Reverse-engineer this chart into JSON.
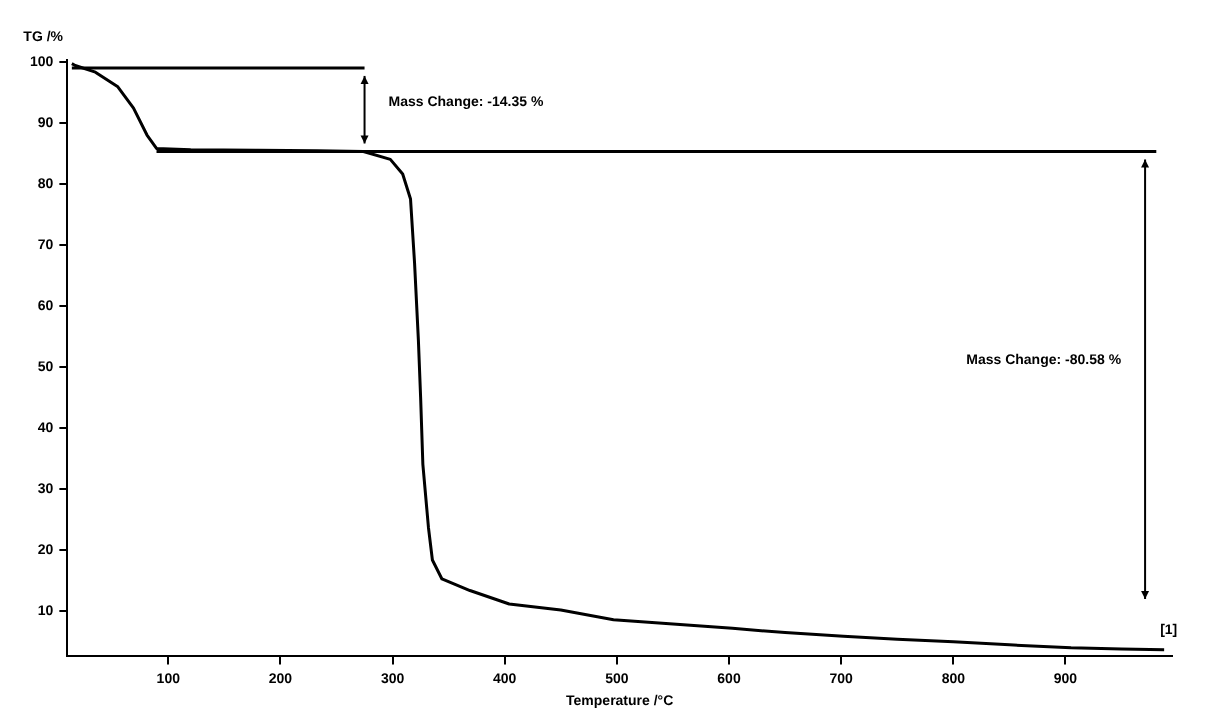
{
  "chart_data": {
    "type": "line",
    "xlabel": "Temperature /°C",
    "ylabel": "TG /%",
    "xlim": [
      10,
      995
    ],
    "ylim": [
      2.5,
      100.3
    ],
    "xticks": [
      100,
      200,
      300,
      400,
      500,
      600,
      700,
      800,
      900
    ],
    "yticks": [
      10,
      20,
      30,
      40,
      50,
      60,
      70,
      80,
      90,
      100
    ],
    "grid": false,
    "legend": false,
    "marker": "none",
    "line_style": "solid",
    "series": [
      {
        "color": "#000000",
        "x": [
          14,
          17,
          35,
          55,
          69,
          81,
          89.5,
          120,
          180,
          233,
          274,
          298,
          309,
          316,
          319.6,
          323,
          325,
          327,
          332,
          335.5,
          344,
          369,
          404,
          450,
          497,
          550,
          603,
          650,
          702,
          750,
          800,
          850,
          905,
          950,
          988
        ],
        "values": [
          99.7,
          99.4,
          98.3,
          95.9,
          92.4,
          88.0,
          85.8,
          85.6,
          85.5,
          85.4,
          85.3,
          84.0,
          81.6,
          77.5,
          67,
          54.4,
          45,
          34,
          23.6,
          18.3,
          15.2,
          13.3,
          11.1,
          10.1,
          8.5,
          7.8,
          7.1,
          6.4,
          5.8,
          5.3,
          4.9,
          4.4,
          3.9,
          3.7,
          3.6
        ]
      },
      {
        "color": "#000000",
        "x": [
          14,
          275
        ],
        "values": [
          99.0,
          99.0
        ]
      },
      {
        "color": "#000000",
        "x": [
          89.5,
          981
        ],
        "values": [
          85.3,
          85.3
        ]
      }
    ],
    "annotations": [
      "Mass Change: -14.35 %",
      "Mass Change: -80.58 %",
      "[1]"
    ]
  }
}
